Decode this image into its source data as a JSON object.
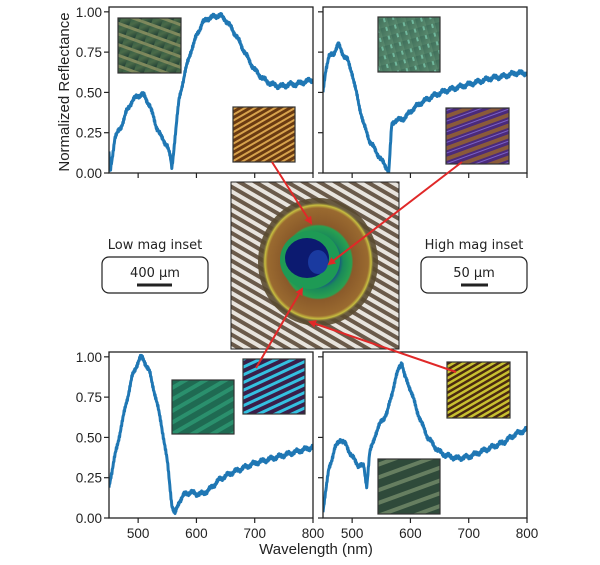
{
  "chart_data": [
    {
      "type": "line",
      "panel": "top-left",
      "xlim": [
        450,
        800
      ],
      "ylim": [
        0,
        1.03
      ],
      "x_ticks": [
        500,
        600,
        700,
        800
      ],
      "x_tick_labels_shown": false,
      "y_ticks": [
        "0.00",
        "0.25",
        "0.50",
        "0.75",
        "1.00"
      ],
      "y_tick_labels_shown": true,
      "color": "#1f77b4",
      "x": [
        450,
        452,
        460,
        470,
        480,
        490,
        500,
        508,
        520,
        530,
        540,
        550,
        555,
        558,
        562,
        570,
        580,
        590,
        600,
        610,
        620,
        630,
        640,
        650,
        660,
        670,
        680,
        690,
        700,
        710,
        720,
        730,
        740,
        750,
        760,
        770,
        780,
        790,
        800
      ],
      "y": [
        0.12,
        0.0,
        0.22,
        0.28,
        0.38,
        0.45,
        0.48,
        0.49,
        0.42,
        0.3,
        0.22,
        0.17,
        0.1,
        0.03,
        0.18,
        0.45,
        0.62,
        0.75,
        0.85,
        0.93,
        0.96,
        0.97,
        0.98,
        0.95,
        0.9,
        0.84,
        0.77,
        0.7,
        0.64,
        0.6,
        0.57,
        0.55,
        0.54,
        0.54,
        0.55,
        0.55,
        0.56,
        0.57,
        0.58
      ]
    },
    {
      "type": "line",
      "panel": "top-right",
      "xlim": [
        450,
        800
      ],
      "ylim": [
        0,
        1.03
      ],
      "x_ticks": [
        500,
        600,
        700,
        800
      ],
      "x_tick_labels_shown": false,
      "y_ticks": [
        "0.00",
        "0.25",
        "0.50",
        "0.75",
        "1.00"
      ],
      "y_tick_labels_shown": false,
      "color": "#1f77b4",
      "x": [
        450,
        455,
        460,
        468,
        476,
        484,
        492,
        500,
        510,
        520,
        530,
        540,
        550,
        558,
        563,
        568,
        575,
        585,
        595,
        605,
        620,
        640,
        660,
        680,
        700,
        720,
        740,
        760,
        780,
        800
      ],
      "y": [
        0.5,
        0.65,
        0.72,
        0.74,
        0.8,
        0.74,
        0.7,
        0.62,
        0.45,
        0.3,
        0.2,
        0.14,
        0.08,
        0.04,
        0.01,
        0.3,
        0.33,
        0.33,
        0.36,
        0.4,
        0.44,
        0.48,
        0.51,
        0.53,
        0.55,
        0.57,
        0.59,
        0.6,
        0.62,
        0.62
      ]
    },
    {
      "type": "line",
      "panel": "bottom-left",
      "xlim": [
        450,
        800
      ],
      "ylim": [
        0,
        1.03
      ],
      "x_ticks": [
        500,
        600,
        700,
        800
      ],
      "x_tick_labels": [
        "500",
        "600",
        "700",
        "800"
      ],
      "y_ticks": [
        "0.00",
        "0.25",
        "0.50",
        "0.75",
        "1.00"
      ],
      "y_tick_labels_shown": true,
      "color": "#1f77b4",
      "x": [
        450,
        460,
        470,
        480,
        490,
        500,
        505,
        510,
        520,
        530,
        540,
        550,
        558,
        563,
        570,
        580,
        590,
        600,
        610,
        620,
        640,
        660,
        680,
        700,
        720,
        740,
        760,
        780,
        800
      ],
      "y": [
        0.2,
        0.38,
        0.55,
        0.72,
        0.88,
        0.97,
        1.0,
        0.98,
        0.9,
        0.75,
        0.58,
        0.35,
        0.08,
        0.02,
        0.1,
        0.15,
        0.16,
        0.15,
        0.15,
        0.17,
        0.24,
        0.28,
        0.31,
        0.34,
        0.36,
        0.38,
        0.4,
        0.42,
        0.44
      ]
    },
    {
      "type": "line",
      "panel": "bottom-right",
      "xlim": [
        450,
        800
      ],
      "ylim": [
        0,
        1.03
      ],
      "x_ticks": [
        500,
        600,
        700,
        800
      ],
      "x_tick_labels": [
        "500",
        "600",
        "700",
        "800"
      ],
      "y_ticks": [
        "0.00",
        "0.25",
        "0.50",
        "0.75",
        "1.00"
      ],
      "y_tick_labels_shown": false,
      "color": "#1f77b4",
      "x": [
        450,
        460,
        470,
        480,
        490,
        500,
        510,
        520,
        525,
        530,
        540,
        550,
        560,
        570,
        580,
        585,
        590,
        600,
        610,
        620,
        630,
        640,
        650,
        660,
        680,
        700,
        720,
        740,
        760,
        780,
        800
      ],
      "y": [
        0.05,
        0.3,
        0.43,
        0.49,
        0.45,
        0.38,
        0.33,
        0.32,
        0.2,
        0.4,
        0.52,
        0.6,
        0.65,
        0.8,
        0.93,
        0.97,
        0.88,
        0.8,
        0.68,
        0.58,
        0.5,
        0.45,
        0.41,
        0.39,
        0.37,
        0.38,
        0.41,
        0.44,
        0.47,
        0.52,
        0.55
      ]
    }
  ],
  "axes": {
    "ylabel": "Normalized Reflectance",
    "xlabel": "Wavelength (nm)"
  },
  "legend": {
    "low_mag": {
      "title": "Low mag inset",
      "scale": "400 µm"
    },
    "high_mag": {
      "title": "High mag inset",
      "scale": "50 µm"
    }
  },
  "colors": {
    "line": "#1f77b4",
    "arrow": "#e02828",
    "axes": "#222222"
  }
}
